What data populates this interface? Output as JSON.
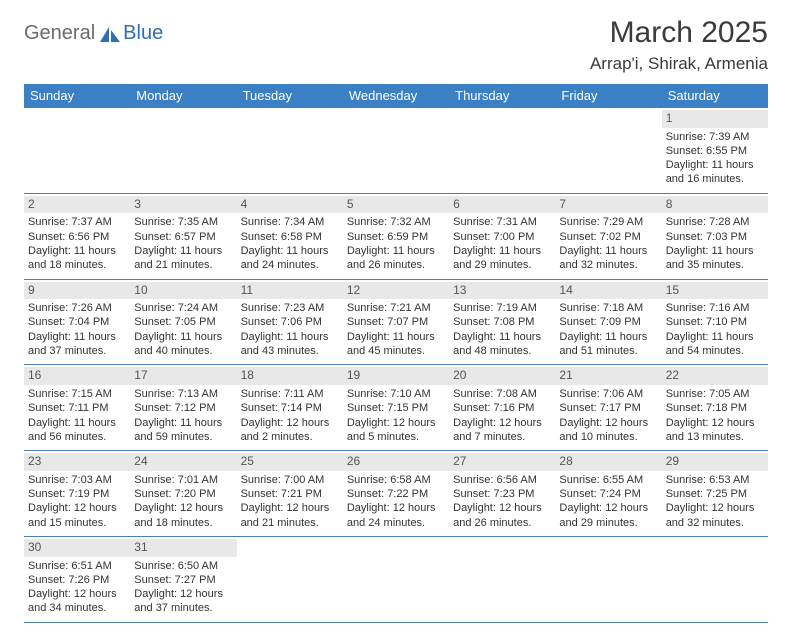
{
  "logo": {
    "part1": "General",
    "part2": "Blue"
  },
  "title": {
    "month": "March 2025",
    "location": "Arrap'i, Shirak, Armenia"
  },
  "colors": {
    "header_bg": "#3b7fc4",
    "header_text": "#ffffff",
    "daynum_bg": "#e8e8e8",
    "daynum_text": "#555555",
    "cell_border": "#4a7fb5",
    "body_text": "#333333",
    "logo_gray": "#6b6b6b",
    "logo_blue": "#2f6fb0"
  },
  "day_headers": [
    "Sunday",
    "Monday",
    "Tuesday",
    "Wednesday",
    "Thursday",
    "Friday",
    "Saturday"
  ],
  "weeks": [
    [
      {
        "n": "",
        "sr": "",
        "ss": "",
        "d1": "",
        "d2": ""
      },
      {
        "n": "",
        "sr": "",
        "ss": "",
        "d1": "",
        "d2": ""
      },
      {
        "n": "",
        "sr": "",
        "ss": "",
        "d1": "",
        "d2": ""
      },
      {
        "n": "",
        "sr": "",
        "ss": "",
        "d1": "",
        "d2": ""
      },
      {
        "n": "",
        "sr": "",
        "ss": "",
        "d1": "",
        "d2": ""
      },
      {
        "n": "",
        "sr": "",
        "ss": "",
        "d1": "",
        "d2": ""
      },
      {
        "n": "1",
        "sr": "Sunrise: 7:39 AM",
        "ss": "Sunset: 6:55 PM",
        "d1": "Daylight: 11 hours",
        "d2": "and 16 minutes."
      }
    ],
    [
      {
        "n": "2",
        "sr": "Sunrise: 7:37 AM",
        "ss": "Sunset: 6:56 PM",
        "d1": "Daylight: 11 hours",
        "d2": "and 18 minutes."
      },
      {
        "n": "3",
        "sr": "Sunrise: 7:35 AM",
        "ss": "Sunset: 6:57 PM",
        "d1": "Daylight: 11 hours",
        "d2": "and 21 minutes."
      },
      {
        "n": "4",
        "sr": "Sunrise: 7:34 AM",
        "ss": "Sunset: 6:58 PM",
        "d1": "Daylight: 11 hours",
        "d2": "and 24 minutes."
      },
      {
        "n": "5",
        "sr": "Sunrise: 7:32 AM",
        "ss": "Sunset: 6:59 PM",
        "d1": "Daylight: 11 hours",
        "d2": "and 26 minutes."
      },
      {
        "n": "6",
        "sr": "Sunrise: 7:31 AM",
        "ss": "Sunset: 7:00 PM",
        "d1": "Daylight: 11 hours",
        "d2": "and 29 minutes."
      },
      {
        "n": "7",
        "sr": "Sunrise: 7:29 AM",
        "ss": "Sunset: 7:02 PM",
        "d1": "Daylight: 11 hours",
        "d2": "and 32 minutes."
      },
      {
        "n": "8",
        "sr": "Sunrise: 7:28 AM",
        "ss": "Sunset: 7:03 PM",
        "d1": "Daylight: 11 hours",
        "d2": "and 35 minutes."
      }
    ],
    [
      {
        "n": "9",
        "sr": "Sunrise: 7:26 AM",
        "ss": "Sunset: 7:04 PM",
        "d1": "Daylight: 11 hours",
        "d2": "and 37 minutes."
      },
      {
        "n": "10",
        "sr": "Sunrise: 7:24 AM",
        "ss": "Sunset: 7:05 PM",
        "d1": "Daylight: 11 hours",
        "d2": "and 40 minutes."
      },
      {
        "n": "11",
        "sr": "Sunrise: 7:23 AM",
        "ss": "Sunset: 7:06 PM",
        "d1": "Daylight: 11 hours",
        "d2": "and 43 minutes."
      },
      {
        "n": "12",
        "sr": "Sunrise: 7:21 AM",
        "ss": "Sunset: 7:07 PM",
        "d1": "Daylight: 11 hours",
        "d2": "and 45 minutes."
      },
      {
        "n": "13",
        "sr": "Sunrise: 7:19 AM",
        "ss": "Sunset: 7:08 PM",
        "d1": "Daylight: 11 hours",
        "d2": "and 48 minutes."
      },
      {
        "n": "14",
        "sr": "Sunrise: 7:18 AM",
        "ss": "Sunset: 7:09 PM",
        "d1": "Daylight: 11 hours",
        "d2": "and 51 minutes."
      },
      {
        "n": "15",
        "sr": "Sunrise: 7:16 AM",
        "ss": "Sunset: 7:10 PM",
        "d1": "Daylight: 11 hours",
        "d2": "and 54 minutes."
      }
    ],
    [
      {
        "n": "16",
        "sr": "Sunrise: 7:15 AM",
        "ss": "Sunset: 7:11 PM",
        "d1": "Daylight: 11 hours",
        "d2": "and 56 minutes."
      },
      {
        "n": "17",
        "sr": "Sunrise: 7:13 AM",
        "ss": "Sunset: 7:12 PM",
        "d1": "Daylight: 11 hours",
        "d2": "and 59 minutes."
      },
      {
        "n": "18",
        "sr": "Sunrise: 7:11 AM",
        "ss": "Sunset: 7:14 PM",
        "d1": "Daylight: 12 hours",
        "d2": "and 2 minutes."
      },
      {
        "n": "19",
        "sr": "Sunrise: 7:10 AM",
        "ss": "Sunset: 7:15 PM",
        "d1": "Daylight: 12 hours",
        "d2": "and 5 minutes."
      },
      {
        "n": "20",
        "sr": "Sunrise: 7:08 AM",
        "ss": "Sunset: 7:16 PM",
        "d1": "Daylight: 12 hours",
        "d2": "and 7 minutes."
      },
      {
        "n": "21",
        "sr": "Sunrise: 7:06 AM",
        "ss": "Sunset: 7:17 PM",
        "d1": "Daylight: 12 hours",
        "d2": "and 10 minutes."
      },
      {
        "n": "22",
        "sr": "Sunrise: 7:05 AM",
        "ss": "Sunset: 7:18 PM",
        "d1": "Daylight: 12 hours",
        "d2": "and 13 minutes."
      }
    ],
    [
      {
        "n": "23",
        "sr": "Sunrise: 7:03 AM",
        "ss": "Sunset: 7:19 PM",
        "d1": "Daylight: 12 hours",
        "d2": "and 15 minutes."
      },
      {
        "n": "24",
        "sr": "Sunrise: 7:01 AM",
        "ss": "Sunset: 7:20 PM",
        "d1": "Daylight: 12 hours",
        "d2": "and 18 minutes."
      },
      {
        "n": "25",
        "sr": "Sunrise: 7:00 AM",
        "ss": "Sunset: 7:21 PM",
        "d1": "Daylight: 12 hours",
        "d2": "and 21 minutes."
      },
      {
        "n": "26",
        "sr": "Sunrise: 6:58 AM",
        "ss": "Sunset: 7:22 PM",
        "d1": "Daylight: 12 hours",
        "d2": "and 24 minutes."
      },
      {
        "n": "27",
        "sr": "Sunrise: 6:56 AM",
        "ss": "Sunset: 7:23 PM",
        "d1": "Daylight: 12 hours",
        "d2": "and 26 minutes."
      },
      {
        "n": "28",
        "sr": "Sunrise: 6:55 AM",
        "ss": "Sunset: 7:24 PM",
        "d1": "Daylight: 12 hours",
        "d2": "and 29 minutes."
      },
      {
        "n": "29",
        "sr": "Sunrise: 6:53 AM",
        "ss": "Sunset: 7:25 PM",
        "d1": "Daylight: 12 hours",
        "d2": "and 32 minutes."
      }
    ],
    [
      {
        "n": "30",
        "sr": "Sunrise: 6:51 AM",
        "ss": "Sunset: 7:26 PM",
        "d1": "Daylight: 12 hours",
        "d2": "and 34 minutes."
      },
      {
        "n": "31",
        "sr": "Sunrise: 6:50 AM",
        "ss": "Sunset: 7:27 PM",
        "d1": "Daylight: 12 hours",
        "d2": "and 37 minutes."
      },
      {
        "n": "",
        "sr": "",
        "ss": "",
        "d1": "",
        "d2": ""
      },
      {
        "n": "",
        "sr": "",
        "ss": "",
        "d1": "",
        "d2": ""
      },
      {
        "n": "",
        "sr": "",
        "ss": "",
        "d1": "",
        "d2": ""
      },
      {
        "n": "",
        "sr": "",
        "ss": "",
        "d1": "",
        "d2": ""
      },
      {
        "n": "",
        "sr": "",
        "ss": "",
        "d1": "",
        "d2": ""
      }
    ]
  ]
}
